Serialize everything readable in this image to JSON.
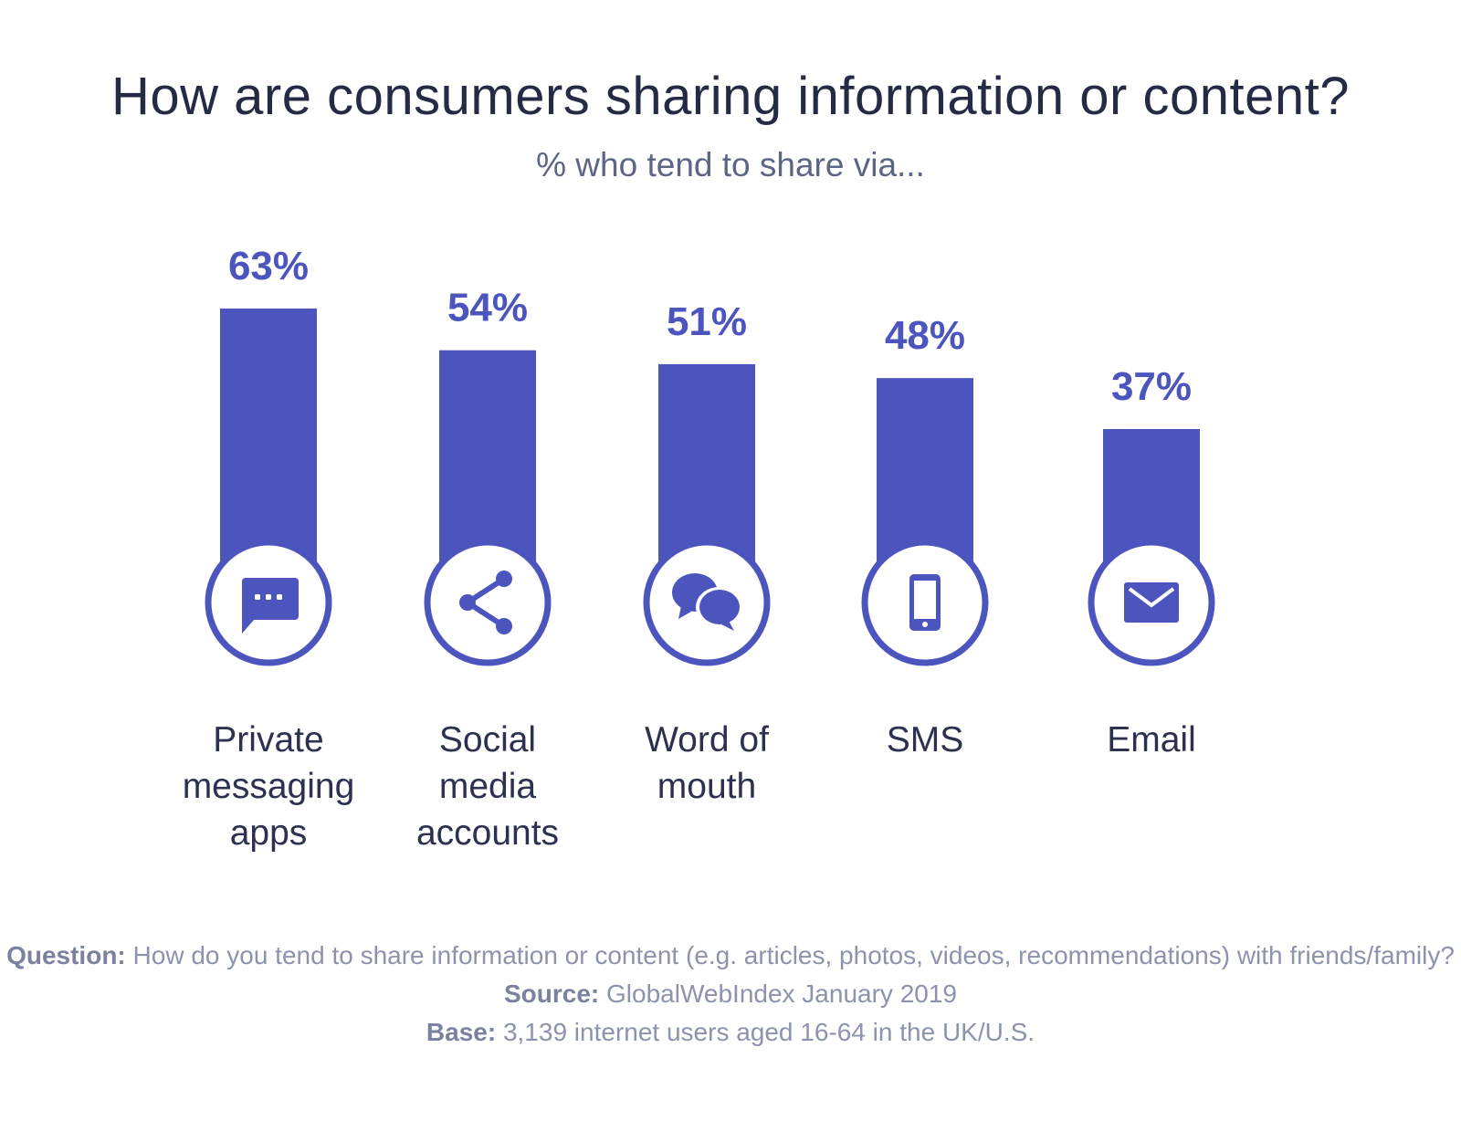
{
  "chart_data": {
    "type": "bar",
    "title": "How are consumers sharing information or content?",
    "subtitle": "% who tend to share via...",
    "categories": [
      "Private messaging apps",
      "Social media accounts",
      "Word of mouth",
      "SMS",
      "Email"
    ],
    "category_lines": [
      [
        "Private",
        "messaging",
        "apps"
      ],
      [
        "Social",
        "media",
        "accounts"
      ],
      [
        "Word of",
        "mouth"
      ],
      [
        "SMS"
      ],
      [
        "Email"
      ]
    ],
    "values": [
      63,
      54,
      51,
      48,
      37
    ],
    "value_labels": [
      "63%",
      "54%",
      "51%",
      "48%",
      "37%"
    ],
    "icons": [
      "chat-bubble-icon",
      "share-icon",
      "speech-bubbles-icon",
      "smartphone-icon",
      "envelope-icon"
    ],
    "ylim": [
      0,
      100
    ],
    "grid": false,
    "colors": {
      "bar": "#4c55be",
      "title": "#252b45",
      "footer": "#8c93ad"
    }
  },
  "footer": {
    "question_label": "Question:",
    "question_text": " How do you tend to share information or content (e.g. articles, photos, videos, recommendations) with friends/family? ",
    "source_label": "Source:",
    "source_text": " GlobalWebIndex January 2019",
    "base_label": "Base:",
    "base_text": " 3,139 internet users aged 16-64 in the UK/U.S."
  }
}
